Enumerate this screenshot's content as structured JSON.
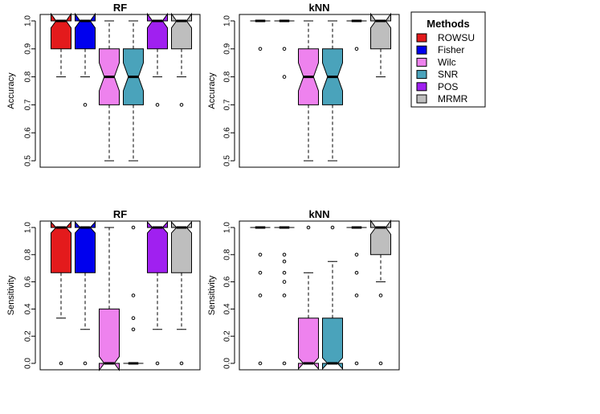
{
  "legend": {
    "title": "Methods",
    "items": [
      {
        "label": "ROWSU",
        "color": "#e31a1c"
      },
      {
        "label": "Fisher",
        "color": "#0000ee"
      },
      {
        "label": "Wilc",
        "color": "#ee82ee"
      },
      {
        "label": "SNR",
        "color": "#4aa3bb"
      },
      {
        "label": "POS",
        "color": "#a020f0"
      },
      {
        "label": "MRMR",
        "color": "#bebebe"
      }
    ]
  },
  "chart_data": [
    {
      "type": "box",
      "title": "RF",
      "ylabel": "Accuracy",
      "ylim": [
        0.5,
        1.0
      ],
      "yticks": [
        "0.5",
        "0.6",
        "0.7",
        "0.8",
        "0.9",
        "1.0"
      ],
      "series": [
        {
          "name": "ROWSU",
          "whisker_low": 0.8,
          "q1": 0.9,
          "median": 1.0,
          "q3": 1.0,
          "whisker_high": 1.0,
          "notch": [
            0.975,
            1.025
          ],
          "outliers": []
        },
        {
          "name": "Fisher",
          "whisker_low": 0.8,
          "q1": 0.9,
          "median": 1.0,
          "q3": 1.0,
          "whisker_high": 1.0,
          "notch": [
            0.975,
            1.025
          ],
          "outliers": [
            0.7
          ]
        },
        {
          "name": "Wilc",
          "whisker_low": 0.5,
          "q1": 0.7,
          "median": 0.8,
          "q3": 0.9,
          "whisker_high": 1.0,
          "notch": [
            0.75,
            0.85
          ],
          "outliers": []
        },
        {
          "name": "SNR",
          "whisker_low": 0.5,
          "q1": 0.7,
          "median": 0.8,
          "q3": 0.9,
          "whisker_high": 1.0,
          "notch": [
            0.75,
            0.85
          ],
          "outliers": []
        },
        {
          "name": "POS",
          "whisker_low": 0.8,
          "q1": 0.9,
          "median": 1.0,
          "q3": 1.0,
          "whisker_high": 1.0,
          "notch": [
            0.975,
            1.025
          ],
          "outliers": [
            0.7
          ]
        },
        {
          "name": "MRMR",
          "whisker_low": 0.8,
          "q1": 0.9,
          "median": 1.0,
          "q3": 1.0,
          "whisker_high": 1.0,
          "notch": [
            0.975,
            1.025
          ],
          "outliers": [
            0.7
          ]
        }
      ]
    },
    {
      "type": "box",
      "title": "kNN",
      "ylabel": "Accuracy",
      "ylim": [
        0.5,
        1.0
      ],
      "yticks": [
        "0.5",
        "0.6",
        "0.7",
        "0.8",
        "0.9",
        "1.0"
      ],
      "series": [
        {
          "name": "ROWSU",
          "whisker_low": 1.0,
          "q1": 1.0,
          "median": 1.0,
          "q3": 1.0,
          "whisker_high": 1.0,
          "notch": [
            1.0,
            1.0
          ],
          "outliers": [
            0.9
          ]
        },
        {
          "name": "Fisher",
          "whisker_low": 1.0,
          "q1": 1.0,
          "median": 1.0,
          "q3": 1.0,
          "whisker_high": 1.0,
          "notch": [
            1.0,
            1.0
          ],
          "outliers": [
            0.9,
            0.8
          ]
        },
        {
          "name": "Wilc",
          "whisker_low": 0.5,
          "q1": 0.7,
          "median": 0.8,
          "q3": 0.9,
          "whisker_high": 1.0,
          "notch": [
            0.75,
            0.85
          ],
          "outliers": []
        },
        {
          "name": "SNR",
          "whisker_low": 0.5,
          "q1": 0.7,
          "median": 0.8,
          "q3": 0.9,
          "whisker_high": 1.0,
          "notch": [
            0.75,
            0.85
          ],
          "outliers": []
        },
        {
          "name": "POS",
          "whisker_low": 1.0,
          "q1": 1.0,
          "median": 1.0,
          "q3": 1.0,
          "whisker_high": 1.0,
          "notch": [
            1.0,
            1.0
          ],
          "outliers": [
            0.9
          ]
        },
        {
          "name": "MRMR",
          "whisker_low": 0.8,
          "q1": 0.9,
          "median": 1.0,
          "q3": 1.0,
          "whisker_high": 1.0,
          "notch": [
            0.975,
            1.025
          ],
          "outliers": []
        }
      ]
    },
    {
      "type": "box",
      "title": "RF",
      "ylabel": "Sensitivity",
      "ylim": [
        0.0,
        1.0
      ],
      "yticks": [
        "0.0",
        "0.2",
        "0.4",
        "0.6",
        "0.8",
        "1.0"
      ],
      "series": [
        {
          "name": "ROWSU",
          "whisker_low": 0.333,
          "q1": 0.667,
          "median": 1.0,
          "q3": 1.0,
          "whisker_high": 1.0,
          "notch": [
            0.96,
            1.04
          ],
          "outliers": [
            0.0
          ]
        },
        {
          "name": "Fisher",
          "whisker_low": 0.25,
          "q1": 0.667,
          "median": 1.0,
          "q3": 1.0,
          "whisker_high": 1.0,
          "notch": [
            0.96,
            1.04
          ],
          "outliers": [
            0.0
          ]
        },
        {
          "name": "Wilc",
          "whisker_low": 0.0,
          "q1": 0.0,
          "median": 0.0,
          "q3": 0.4,
          "whisker_high": 1.0,
          "notch": [
            -0.05,
            0.05
          ],
          "outliers": []
        },
        {
          "name": "SNR",
          "whisker_low": 0.0,
          "q1": 0.0,
          "median": 0.0,
          "q3": 0.0,
          "whisker_high": 0.0,
          "notch": [
            0.0,
            0.0
          ],
          "outliers": [
            1.0,
            0.5,
            0.333,
            0.25
          ]
        },
        {
          "name": "POS",
          "whisker_low": 0.25,
          "q1": 0.667,
          "median": 1.0,
          "q3": 1.0,
          "whisker_high": 1.0,
          "notch": [
            0.96,
            1.04
          ],
          "outliers": [
            0.0
          ]
        },
        {
          "name": "MRMR",
          "whisker_low": 0.25,
          "q1": 0.667,
          "median": 1.0,
          "q3": 1.0,
          "whisker_high": 1.0,
          "notch": [
            0.96,
            1.04
          ],
          "outliers": [
            0.0
          ]
        }
      ]
    },
    {
      "type": "box",
      "title": "kNN",
      "ylabel": "Sensitivity",
      "ylim": [
        0.0,
        1.0
      ],
      "yticks": [
        "0.0",
        "0.2",
        "0.4",
        "0.6",
        "0.8",
        "1.0"
      ],
      "series": [
        {
          "name": "ROWSU",
          "whisker_low": 1.0,
          "q1": 1.0,
          "median": 1.0,
          "q3": 1.0,
          "whisker_high": 1.0,
          "notch": [
            1.0,
            1.0
          ],
          "outliers": [
            0.8,
            0.667,
            0.5,
            0.0
          ]
        },
        {
          "name": "Fisher",
          "whisker_low": 1.0,
          "q1": 1.0,
          "median": 1.0,
          "q3": 1.0,
          "whisker_high": 1.0,
          "notch": [
            1.0,
            1.0
          ],
          "outliers": [
            0.8,
            0.75,
            0.667,
            0.6,
            0.5,
            0.0
          ]
        },
        {
          "name": "Wilc",
          "whisker_low": 0.0,
          "q1": 0.0,
          "median": 0.0,
          "q3": 0.333,
          "whisker_high": 0.667,
          "notch": [
            -0.04,
            0.04
          ],
          "outliers": [
            1.0
          ]
        },
        {
          "name": "SNR",
          "whisker_low": 0.0,
          "q1": 0.0,
          "median": 0.0,
          "q3": 0.333,
          "whisker_high": 0.75,
          "notch": [
            -0.04,
            0.04
          ],
          "outliers": [
            1.0
          ]
        },
        {
          "name": "POS",
          "whisker_low": 1.0,
          "q1": 1.0,
          "median": 1.0,
          "q3": 1.0,
          "whisker_high": 1.0,
          "notch": [
            1.0,
            1.0
          ],
          "outliers": [
            0.8,
            0.667,
            0.5,
            0.0
          ]
        },
        {
          "name": "MRMR",
          "whisker_low": 0.6,
          "q1": 0.8,
          "median": 1.0,
          "q3": 1.0,
          "whisker_high": 1.0,
          "notch": [
            0.95,
            1.05
          ],
          "outliers": [
            0.5,
            0.0
          ]
        }
      ]
    }
  ]
}
